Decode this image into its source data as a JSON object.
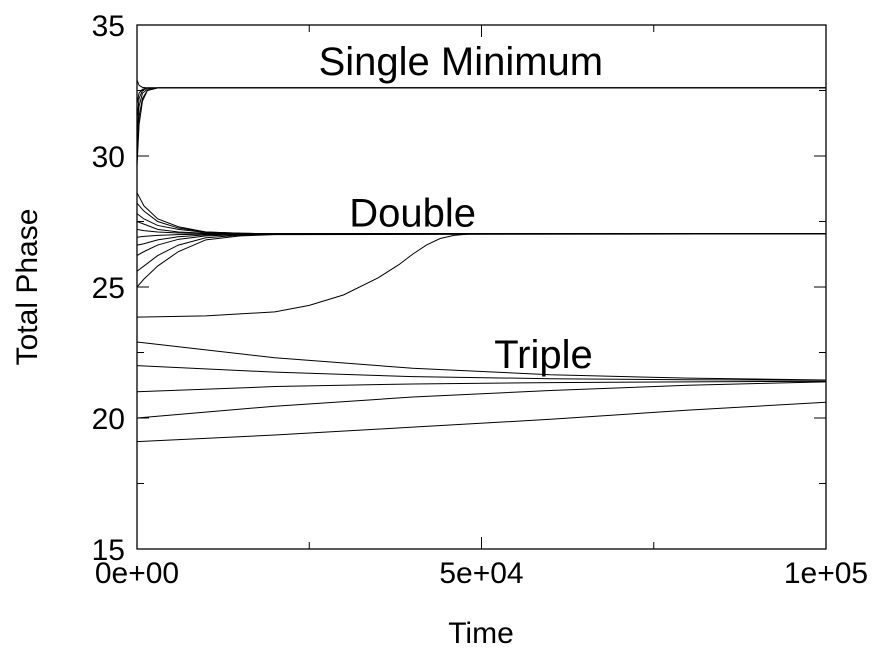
{
  "chart_data": {
    "type": "line",
    "title": "",
    "xlabel": "Time",
    "ylabel": "Total Phase",
    "xlim": [
      0,
      100000
    ],
    "ylim": [
      15,
      35
    ],
    "grid": false,
    "legend": "none",
    "x_tick_values": [
      0,
      50000,
      100000
    ],
    "x_tick_labels": [
      "0e+00",
      "5e+04",
      "1e+05"
    ],
    "x_minor_ticks": [
      25000,
      75000
    ],
    "y_tick_values": [
      15,
      20,
      25,
      30,
      35
    ],
    "y_tick_labels": [
      "15",
      "20",
      "25",
      "30",
      "35"
    ],
    "y_minor_ticks": [
      17.5,
      22.5,
      27.5,
      32.5
    ],
    "annotations": [
      {
        "text": "Single Minimum",
        "x": 47000,
        "y": 33.1
      },
      {
        "text": "Double",
        "x": 40000,
        "y": 27.3
      },
      {
        "text": "Triple",
        "x": 59000,
        "y": 21.9
      }
    ],
    "series": [
      {
        "x": [
          0,
          300,
          800,
          1500,
          3000,
          10000,
          100000
        ],
        "y": [
          29.6,
          31.2,
          32.1,
          32.5,
          32.6,
          32.6,
          32.6
        ]
      },
      {
        "x": [
          0,
          300,
          800,
          1500,
          3000,
          10000,
          100000
        ],
        "y": [
          30.2,
          31.5,
          32.2,
          32.5,
          32.6,
          32.6,
          32.6
        ]
      },
      {
        "x": [
          0,
          300,
          800,
          1500,
          3000,
          10000,
          100000
        ],
        "y": [
          30.8,
          31.9,
          32.4,
          32.55,
          32.6,
          32.6,
          32.6
        ]
      },
      {
        "x": [
          0,
          300,
          800,
          1500,
          3000,
          10000,
          100000
        ],
        "y": [
          31.4,
          32.2,
          32.5,
          32.6,
          32.6,
          32.6,
          32.6
        ]
      },
      {
        "x": [
          0,
          300,
          800,
          1500,
          3000,
          10000,
          100000
        ],
        "y": [
          32.0,
          32.4,
          32.55,
          32.6,
          32.6,
          32.6,
          32.6
        ]
      },
      {
        "x": [
          0,
          300,
          800,
          1500,
          3000,
          10000,
          100000
        ],
        "y": [
          32.9,
          32.7,
          32.62,
          32.6,
          32.6,
          32.6,
          32.6
        ]
      },
      {
        "x": [
          0,
          1000,
          3000,
          6000,
          10000,
          15000,
          20000,
          100000
        ],
        "y": [
          28.6,
          28.1,
          27.6,
          27.3,
          27.1,
          27.05,
          27.03,
          27.03
        ]
      },
      {
        "x": [
          0,
          1000,
          3000,
          6000,
          10000,
          15000,
          20000,
          100000
        ],
        "y": [
          28.2,
          27.9,
          27.5,
          27.25,
          27.1,
          27.05,
          27.03,
          27.03
        ]
      },
      {
        "x": [
          0,
          1000,
          3000,
          6000,
          10000,
          15000,
          20000,
          100000
        ],
        "y": [
          27.8,
          27.6,
          27.35,
          27.2,
          27.08,
          27.05,
          27.03,
          27.03
        ]
      },
      {
        "x": [
          0,
          1000,
          3000,
          6000,
          10000,
          15000,
          20000,
          100000
        ],
        "y": [
          27.5,
          27.4,
          27.2,
          27.1,
          27.05,
          27.04,
          27.03,
          27.03
        ]
      },
      {
        "x": [
          0,
          1000,
          3000,
          6000,
          10000,
          15000,
          20000,
          100000
        ],
        "y": [
          27.2,
          27.15,
          27.1,
          27.06,
          27.04,
          27.03,
          27.03,
          27.03
        ]
      },
      {
        "x": [
          0,
          1000,
          3000,
          6000,
          10000,
          15000,
          20000,
          100000
        ],
        "y": [
          26.9,
          26.93,
          26.97,
          27.0,
          27.02,
          27.03,
          27.03,
          27.03
        ]
      },
      {
        "x": [
          0,
          1000,
          3000,
          6000,
          10000,
          15000,
          20000,
          100000
        ],
        "y": [
          26.6,
          26.65,
          26.8,
          26.92,
          26.99,
          27.02,
          27.03,
          27.03
        ]
      },
      {
        "x": [
          0,
          1000,
          3000,
          6000,
          10000,
          15000,
          20000,
          100000
        ],
        "y": [
          26.2,
          26.35,
          26.6,
          26.82,
          26.95,
          27.0,
          27.02,
          27.03
        ]
      },
      {
        "x": [
          0,
          1000,
          3000,
          6000,
          10000,
          15000,
          20000,
          100000
        ],
        "y": [
          25.6,
          25.8,
          26.2,
          26.6,
          26.88,
          26.98,
          27.02,
          27.03
        ]
      },
      {
        "x": [
          0,
          1000,
          3000,
          6000,
          10000,
          15000,
          20000,
          100000
        ],
        "y": [
          25.0,
          25.3,
          25.8,
          26.35,
          26.8,
          26.95,
          27.0,
          27.03
        ]
      },
      {
        "x": [
          0,
          10000,
          20000,
          25000,
          30000,
          35000,
          38000,
          40000,
          42000,
          44000,
          46000,
          48000,
          50000,
          54000,
          100000
        ],
        "y": [
          23.85,
          23.9,
          24.05,
          24.3,
          24.7,
          25.35,
          25.85,
          26.25,
          26.6,
          26.85,
          26.97,
          27.02,
          27.03,
          27.03,
          27.03
        ]
      },
      {
        "x": [
          0,
          20000,
          40000,
          60000,
          80000,
          100000
        ],
        "y": [
          22.9,
          22.3,
          21.9,
          21.65,
          21.52,
          21.45
        ]
      },
      {
        "x": [
          0,
          20000,
          40000,
          60000,
          80000,
          100000
        ],
        "y": [
          22.0,
          21.75,
          21.58,
          21.5,
          21.46,
          21.44
        ]
      },
      {
        "x": [
          0,
          20000,
          40000,
          60000,
          80000,
          100000
        ],
        "y": [
          21.0,
          21.2,
          21.3,
          21.35,
          21.38,
          21.4
        ]
      },
      {
        "x": [
          0,
          20000,
          40000,
          60000,
          80000,
          100000
        ],
        "y": [
          20.0,
          20.45,
          20.8,
          21.05,
          21.25,
          21.38
        ]
      },
      {
        "x": [
          0,
          20000,
          40000,
          60000,
          80000,
          100000
        ],
        "y": [
          19.1,
          19.35,
          19.65,
          19.95,
          20.3,
          20.6
        ]
      }
    ]
  }
}
